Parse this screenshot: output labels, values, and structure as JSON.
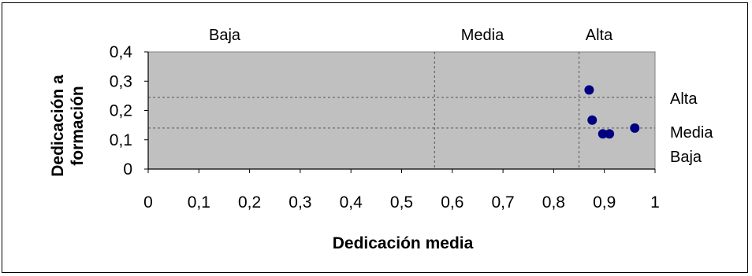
{
  "chart_data": {
    "type": "scatter",
    "xlabel": "Dedicación media",
    "ylabel": "Dedicación a formación",
    "xlim": [
      0,
      1
    ],
    "ylim": [
      0,
      0.4
    ],
    "x_ticks": [
      "0",
      "0,1",
      "0,2",
      "0,3",
      "0,4",
      "0,5",
      "0,6",
      "0,7",
      "0,8",
      "0,9",
      "1"
    ],
    "y_ticks": [
      "0",
      "0,1",
      "0,2",
      "0,3",
      "0,4"
    ],
    "grid": false,
    "plot_background": "#c0c0c0",
    "marker_color": "#000080",
    "points": [
      {
        "x": 0.87,
        "y": 0.27
      },
      {
        "x": 0.876,
        "y": 0.167
      },
      {
        "x": 0.897,
        "y": 0.12
      },
      {
        "x": 0.91,
        "y": 0.12
      },
      {
        "x": 0.96,
        "y": 0.14
      }
    ],
    "threshold_lines": {
      "x": [
        0.565,
        0.85
      ],
      "y": [
        0.245,
        0.14
      ]
    },
    "x_zone_labels": [
      "Baja",
      "Media",
      "Alta"
    ],
    "y_zone_labels": [
      "Alta",
      "Media",
      "Baja"
    ]
  }
}
